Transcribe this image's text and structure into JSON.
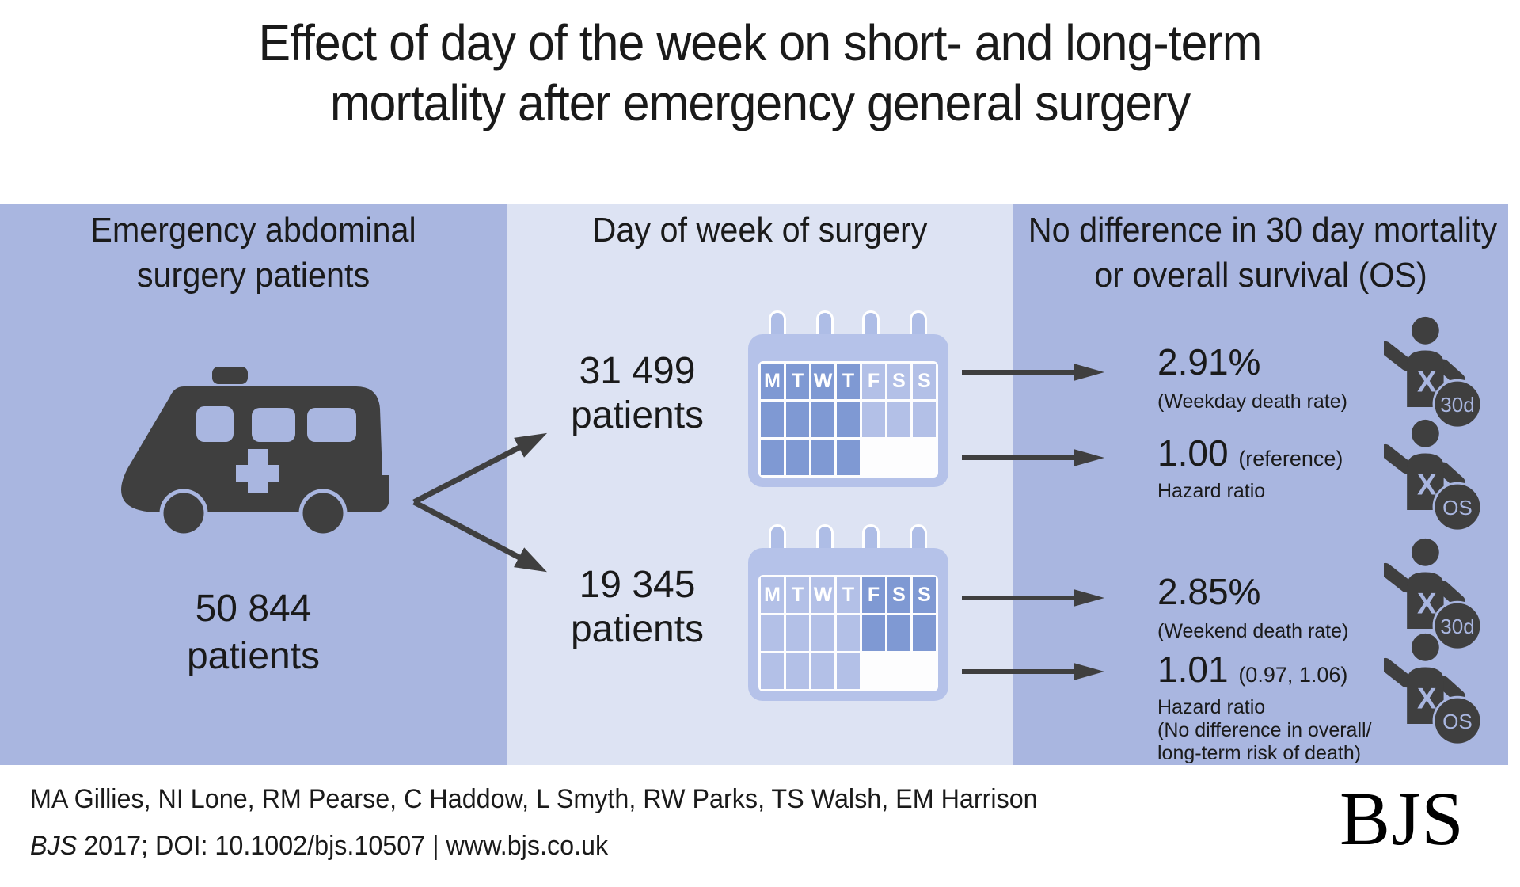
{
  "title": {
    "line1": "Effect of day of the week on short- and long-term",
    "line2": "mortality after emergency general surgery"
  },
  "columns": {
    "left": {
      "header_line1": "Emergency abdominal",
      "header_line2": "surgery patients",
      "count": "50 844",
      "count_label": "patients"
    },
    "middle": {
      "header": "Day of week of surgery",
      "groups": [
        {
          "count": "31 499",
          "label": "patients",
          "calendar": {
            "days": [
              "M",
              "T",
              "W",
              "T",
              "F",
              "S",
              "S"
            ],
            "highlight": "weekday"
          }
        },
        {
          "count": "19 345",
          "label": "patients",
          "calendar": {
            "days": [
              "M",
              "T",
              "W",
              "T",
              "F",
              "S",
              "S"
            ],
            "highlight": "weekend"
          }
        }
      ]
    },
    "right": {
      "header_line1": "No difference in 30 day mortality",
      "header_line2": "or overall survival (OS)",
      "rows": [
        {
          "value": "2.91%",
          "sub1": "(Weekday death rate)",
          "badge": "30d"
        },
        {
          "value": "1.00",
          "note": "(reference)",
          "sub1": "Hazard ratio",
          "badge": "OS"
        },
        {
          "value": "2.85%",
          "sub1": "(Weekend death rate)",
          "badge": "30d"
        },
        {
          "value": "1.01",
          "note": "(0.97, 1.06)",
          "sub1": "Hazard ratio",
          "sub2": "(No difference in  overall/",
          "sub3": "long-term risk of death)",
          "badge": "OS"
        }
      ]
    }
  },
  "footer": {
    "authors": "MA Gillies, NI Lone, RM Pearse, C Haddow, L Smyth, RW Parks, TS Walsh, EM Harrison",
    "journal": "BJS",
    "citation_rest": " 2017; DOI: 10.1002/bjs.10507 | www.bjs.co.uk",
    "logo": "BJS"
  },
  "colors": {
    "band_medium": "#a9b6e0",
    "band_light": "#dde3f3",
    "icon_gray": "#3f3f3f",
    "calendar_body": "#b5c2e9",
    "calendar_dark_cell": "#7f99d3",
    "calendar_light_cell": "#b3c0e7",
    "text": "#1a1a1a"
  }
}
